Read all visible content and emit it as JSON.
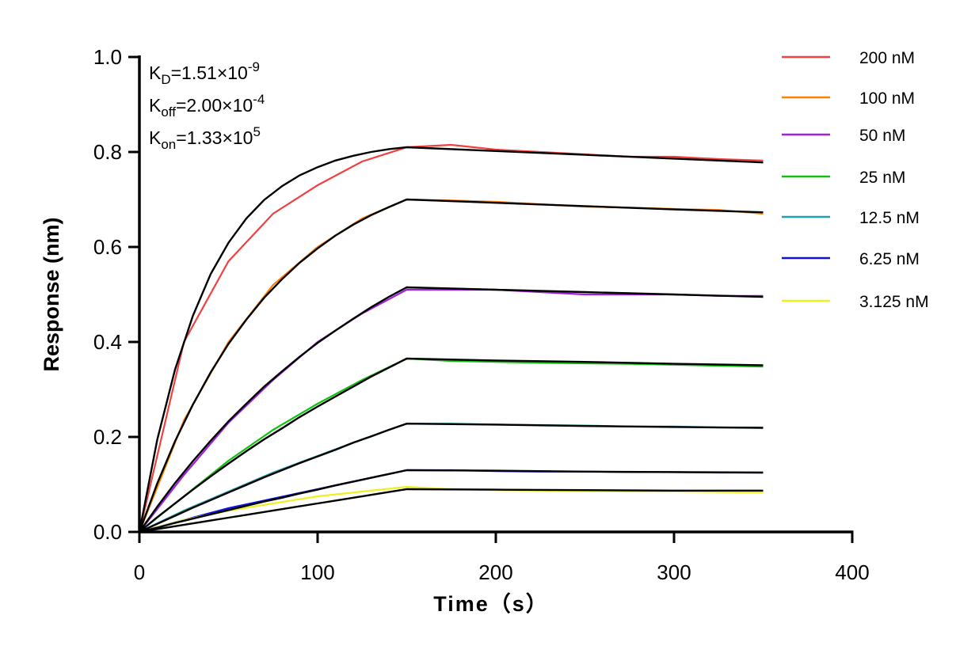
{
  "chart_data": {
    "type": "line",
    "title": "",
    "xlabel": "Time（s）",
    "ylabel": "Response (nm)",
    "xlim": [
      0,
      400
    ],
    "ylim": [
      0,
      1.0
    ],
    "xticks": [
      0,
      100,
      200,
      300,
      400
    ],
    "xtick_labels": [
      "0",
      "100",
      "200",
      "300",
      "400"
    ],
    "yticks": [
      0,
      0.2,
      0.4,
      0.6,
      0.8,
      1.0
    ],
    "ytick_labels": [
      "0.0",
      "0.2",
      "0.4",
      "0.6",
      "0.8",
      "1.0"
    ],
    "grid": false,
    "legend_placement": "right",
    "annotations": [
      {
        "base": "K",
        "sub": "D",
        "value": "=1.51×10",
        "exp": "-9"
      },
      {
        "base": "K",
        "sub": "off",
        "value": "=2.00×10",
        "exp": "-4"
      },
      {
        "base": "K",
        "sub": "on",
        "value": "=1.33×10",
        "exp": "5"
      }
    ],
    "x": [
      0,
      25,
      50,
      75,
      100,
      125,
      150,
      175,
      200,
      225,
      250,
      275,
      300,
      325,
      350
    ],
    "series": [
      {
        "name": "200 nM",
        "color": "#f04040",
        "values": [
          0,
          0.4,
          0.57,
          0.67,
          0.73,
          0.78,
          0.81,
          0.815,
          0.805,
          0.8,
          0.795,
          0.79,
          0.79,
          0.785,
          0.782
        ]
      },
      {
        "name": "100 nM",
        "color": "#ff8000",
        "values": [
          0,
          0.235,
          0.4,
          0.52,
          0.6,
          0.66,
          0.7,
          0.698,
          0.695,
          0.69,
          0.685,
          0.683,
          0.68,
          0.678,
          0.67
        ]
      },
      {
        "name": "50 nM",
        "color": "#a020e0",
        "values": [
          0,
          0.12,
          0.23,
          0.32,
          0.4,
          0.46,
          0.51,
          0.51,
          0.51,
          0.505,
          0.5,
          0.5,
          0.5,
          0.497,
          0.497
        ]
      },
      {
        "name": "25 nM",
        "color": "#10c010",
        "values": [
          0,
          0.075,
          0.15,
          0.215,
          0.27,
          0.32,
          0.365,
          0.36,
          0.358,
          0.356,
          0.355,
          0.354,
          0.352,
          0.35,
          0.348
        ]
      },
      {
        "name": "12.5 nM",
        "color": "#20a0b0",
        "values": [
          0,
          0.045,
          0.085,
          0.125,
          0.16,
          0.195,
          0.228,
          0.228,
          0.226,
          0.225,
          0.224,
          0.222,
          0.222,
          0.22,
          0.22
        ]
      },
      {
        "name": "6.25 nM",
        "color": "#1010e0",
        "values": [
          0,
          0.025,
          0.05,
          0.07,
          0.09,
          0.11,
          0.13,
          0.13,
          0.128,
          0.127,
          0.127,
          0.126,
          0.126,
          0.125,
          0.125
        ]
      },
      {
        "name": "3.125 nM",
        "color": "#f0f020",
        "values": [
          0,
          0.025,
          0.045,
          0.06,
          0.075,
          0.085,
          0.095,
          0.09,
          0.088,
          0.087,
          0.086,
          0.085,
          0.085,
          0.084,
          0.083
        ]
      }
    ],
    "fit": {
      "color": "#000000",
      "x": [
        0,
        10,
        20,
        30,
        40,
        50,
        60,
        70,
        80,
        90,
        100,
        110,
        120,
        130,
        140,
        150,
        200,
        250,
        300,
        350
      ],
      "curves": [
        [
          0,
          0.194,
          0.342,
          0.455,
          0.543,
          0.609,
          0.66,
          0.699,
          0.728,
          0.751,
          0.768,
          0.782,
          0.792,
          0.8,
          0.806,
          0.81,
          0.802,
          0.794,
          0.786,
          0.778
        ],
        [
          0,
          0.102,
          0.191,
          0.268,
          0.336,
          0.396,
          0.447,
          0.493,
          0.532,
          0.567,
          0.597,
          0.624,
          0.647,
          0.667,
          0.684,
          0.7,
          0.693,
          0.686,
          0.679,
          0.673
        ],
        [
          0,
          0.053,
          0.103,
          0.149,
          0.192,
          0.233,
          0.27,
          0.306,
          0.338,
          0.369,
          0.398,
          0.424,
          0.449,
          0.473,
          0.495,
          0.515,
          0.51,
          0.505,
          0.5,
          0.495
        ],
        [
          0,
          0.031,
          0.06,
          0.089,
          0.117,
          0.144,
          0.17,
          0.195,
          0.218,
          0.242,
          0.264,
          0.285,
          0.306,
          0.327,
          0.346,
          0.365,
          0.361,
          0.358,
          0.354,
          0.351
        ],
        [
          0,
          0.017,
          0.034,
          0.051,
          0.067,
          0.083,
          0.099,
          0.115,
          0.13,
          0.145,
          0.159,
          0.173,
          0.188,
          0.201,
          0.215,
          0.228,
          0.226,
          0.223,
          0.221,
          0.219
        ],
        [
          0,
          0.009,
          0.019,
          0.028,
          0.037,
          0.046,
          0.055,
          0.064,
          0.072,
          0.081,
          0.089,
          0.098,
          0.106,
          0.114,
          0.122,
          0.13,
          0.129,
          0.127,
          0.126,
          0.125
        ],
        [
          0,
          0.006,
          0.012,
          0.018,
          0.024,
          0.03,
          0.036,
          0.042,
          0.048,
          0.054,
          0.06,
          0.066,
          0.072,
          0.078,
          0.084,
          0.09,
          0.089,
          0.088,
          0.087,
          0.087
        ]
      ]
    }
  }
}
